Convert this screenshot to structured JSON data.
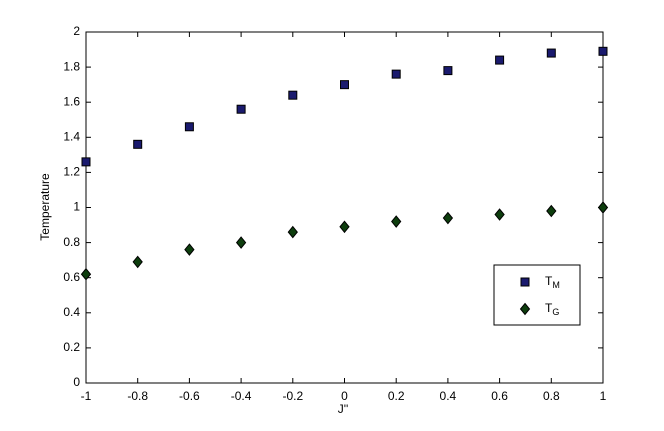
{
  "chart_data": {
    "type": "scatter",
    "x_label": "J''",
    "y_label": "Temperature",
    "x": [
      -1,
      -0.8,
      -0.6,
      -0.4,
      -0.2,
      0,
      0.2,
      0.4,
      0.6,
      0.8,
      1
    ],
    "series": [
      {
        "name": "TM",
        "color": "#1a1a6e",
        "marker": "square",
        "values": [
          1.26,
          1.36,
          1.46,
          1.56,
          1.64,
          1.7,
          1.76,
          1.78,
          1.84,
          1.88,
          1.89
        ]
      },
      {
        "name": "TG",
        "color": "#0d3d0d",
        "marker": "diamond",
        "values": [
          0.62,
          0.69,
          0.76,
          0.8,
          0.86,
          0.89,
          0.92,
          0.94,
          0.96,
          0.98,
          1.0
        ]
      }
    ],
    "xlim": [
      -1,
      1
    ],
    "xticks": [
      -1,
      -0.8,
      -0.6,
      -0.4,
      -0.2,
      0,
      0.2,
      0.4,
      0.6,
      0.8,
      1
    ],
    "ylim": [
      0,
      2
    ],
    "yticks": [
      0,
      0.2,
      0.4,
      0.6,
      0.8,
      1,
      1.2,
      1.4,
      1.6,
      1.8,
      2
    ],
    "grid": false,
    "legend": "lower right"
  }
}
